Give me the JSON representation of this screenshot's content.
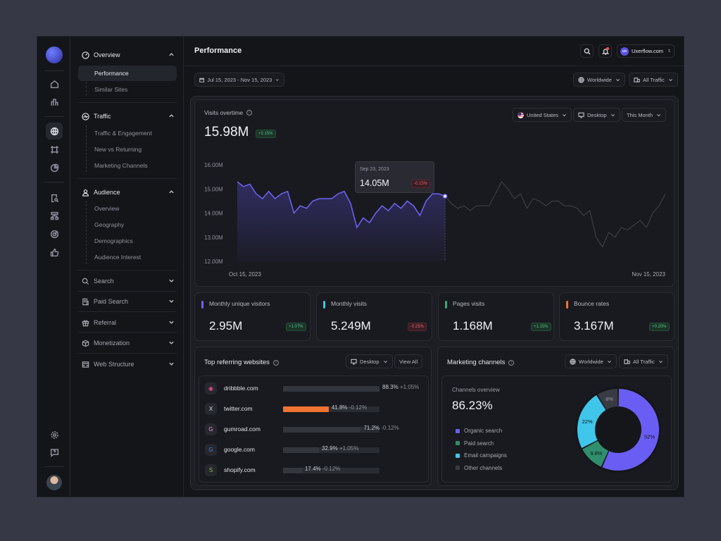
{
  "header": {
    "title": "Performance",
    "account": "Uxerflow.com",
    "account_initials": "UX"
  },
  "filters": {
    "date_range": "Jul 15, 2023 - Nov 15, 2023",
    "region": "Worldwide",
    "traffic": "All Traffic"
  },
  "sidebar": {
    "overview": {
      "label": "Overview",
      "items": [
        "Performance",
        "Similar Sites"
      ]
    },
    "traffic": {
      "label": "Traffic",
      "items": [
        "Traffic & Engagement",
        "New vs Returning",
        "Marketing Channels"
      ]
    },
    "audience": {
      "label": "Audience",
      "items": [
        "Overview",
        "Geography",
        "Demographics",
        "Audience Interest"
      ]
    },
    "collapsed": [
      "Search",
      "Paid Search",
      "Referral",
      "Monetization",
      "Web Structure"
    ]
  },
  "visits": {
    "title": "Visits overtime",
    "total": "15.98M",
    "change": "+2.15%",
    "country": "United States",
    "device": "Desktop",
    "period": "This Month",
    "tooltip": {
      "date": "Sep 23, 2023",
      "value": "14.05M",
      "change": "-0.15%"
    }
  },
  "chart_data": {
    "type": "line",
    "ylim": [
      12,
      16
    ],
    "y_ticks": [
      "16.00M",
      "15.00M",
      "14.00M",
      "13.00M",
      "12.00M"
    ],
    "x_labels": {
      "start": "Oct 15, 2023",
      "end": "Nov 15, 2023"
    },
    "series": [
      {
        "values": [
          15.3,
          15.1,
          15.2,
          14.8,
          14.6,
          14.9,
          14.6,
          14.8,
          14.9,
          14.0,
          14.3,
          14.2,
          14.5,
          14.6,
          14.6,
          14.6,
          14.8,
          14.9,
          14.4,
          13.4,
          13.8,
          13.6,
          14.0,
          14.3,
          14.1,
          14.4,
          14.2,
          14.5,
          14.3,
          13.9,
          14.5,
          14.8,
          14.8,
          14.7,
          14.4,
          14.2,
          14.3,
          14.1,
          14.3,
          14.3,
          14.3,
          14.8,
          15.3,
          15.0,
          14.6,
          14.8,
          14.2,
          14.6,
          14.5,
          14.3,
          14.5,
          14.5,
          14.3,
          14.3,
          14.2,
          13.9,
          14.1,
          13.0,
          12.6,
          13.2,
          13.0,
          13.4,
          13.3,
          13.5,
          13.7,
          13.4,
          14.0,
          14.3,
          14.8
        ]
      }
    ],
    "highlight_until_index": 33,
    "accent": "#7064f5"
  },
  "kpis": [
    {
      "label": "Monthly unique visitors",
      "value": "2.95M",
      "change": "+1.07%",
      "color": "#6e63f5",
      "trend": "up"
    },
    {
      "label": "Monthly visits",
      "value": "5.249M",
      "change": "-0.25%",
      "color": "#3fc3e6",
      "trend": "down"
    },
    {
      "label": "Pages visits",
      "value": "1.168M",
      "change": "+1.15%",
      "color": "#3aa57e",
      "trend": "up"
    },
    {
      "label": "Bounce rates",
      "value": "3.167M",
      "change": "+0.20%",
      "color": "#ee7431",
      "trend": "up"
    }
  ],
  "referring": {
    "title": "Top referring websites",
    "device": "Desktop",
    "view_all": "View All",
    "rows": [
      {
        "site": "dribbble.com",
        "pct": 88.3,
        "pct_label": "88.3%",
        "change": "+1.05%",
        "icon": "dribbble-icon",
        "glyph": "◉",
        "icon_color": "#ea4c89",
        "bar_color": "#383a42"
      },
      {
        "site": "twitter.com",
        "pct": 41.8,
        "pct_label": "41.8%",
        "change": "-0.12%",
        "icon": "x-icon",
        "glyph": "X",
        "icon_color": "#e6e6ea",
        "bar_color": "#ee7431"
      },
      {
        "site": "gumroad.com",
        "pct": 71.2,
        "pct_label": "71.2%",
        "change": "-0.12%",
        "icon": "gumroad-icon",
        "glyph": "G",
        "icon_color": "#ff90e8",
        "bar_color": "#383a42"
      },
      {
        "site": "google.com",
        "pct": 32.9,
        "pct_label": "32.9%",
        "change": "+1.05%",
        "icon": "google-icon",
        "glyph": "G",
        "icon_color": "#4285f4",
        "bar_color": "#383a42"
      },
      {
        "site": "shopify.com",
        "pct": 17.4,
        "pct_label": "17.4%",
        "change": "-0.12%",
        "icon": "shopify-icon",
        "glyph": "S",
        "icon_color": "#95bf47",
        "bar_color": "#383a42"
      }
    ]
  },
  "marketing": {
    "title": "Marketing channels",
    "region": "Worldwide",
    "traffic": "All Traffic",
    "overview_label": "Channels overview",
    "overview_value": "86.23%",
    "channels": [
      {
        "name": "Organic search",
        "value": 52,
        "label": "52%",
        "color": "#6a5df4"
      },
      {
        "name": "Paid search",
        "value": 9.8,
        "label": "9.8%",
        "color": "#2f8f6c"
      },
      {
        "name": "Email campaigns",
        "value": 22,
        "label": "22%",
        "color": "#3fc6ea"
      },
      {
        "name": "Other channels",
        "value": 8,
        "label": "8%",
        "color": "#383a44"
      }
    ]
  }
}
